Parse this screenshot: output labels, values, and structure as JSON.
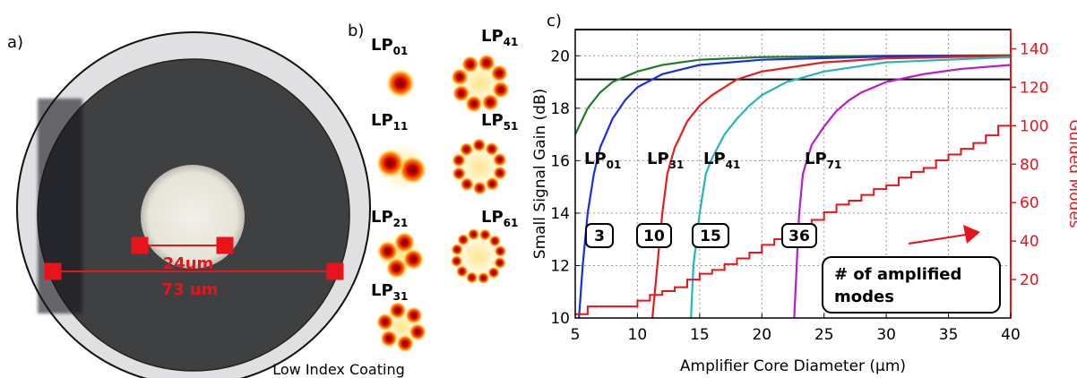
{
  "panel_a": {
    "label": "a)",
    "inner_dimension": "24um",
    "outer_dimension": "73 um",
    "coating_label": "Low Index Coating"
  },
  "panel_b": {
    "label": "b)",
    "modes": [
      {
        "base": "LP",
        "sub": "01"
      },
      {
        "base": "LP",
        "sub": "11"
      },
      {
        "base": "LP",
        "sub": "21"
      },
      {
        "base": "LP",
        "sub": "31"
      },
      {
        "base": "LP",
        "sub": "41"
      },
      {
        "base": "LP",
        "sub": "51"
      },
      {
        "base": "LP",
        "sub": "61"
      }
    ]
  },
  "colors": {
    "accent_red": "#e8141c",
    "lp01": "#1f7a2c",
    "lp31": "#1a2fdc",
    "lp41": "#e81c1c",
    "lp51": "#22b7b7",
    "lp71": "#b51ec9"
  },
  "chart_data": {
    "type": "line",
    "panel_label": "c)",
    "xlabel": "Amplifier Core Diameter (μm)",
    "ylabel": "Small Signal Gain (dB)",
    "y2label": "Guided Modes",
    "xlim": [
      5,
      40
    ],
    "ylim": [
      10,
      21
    ],
    "y2lim": [
      0,
      150
    ],
    "xticks": [
      5,
      10,
      15,
      20,
      25,
      30,
      35,
      40
    ],
    "yticks": [
      10,
      12,
      14,
      16,
      18,
      20
    ],
    "y2ticks": [
      20,
      40,
      60,
      80,
      100,
      120,
      140
    ],
    "grid": true,
    "reference_lines_dB": [
      21,
      19.1
    ],
    "series": [
      {
        "x": [
          5,
          6,
          7,
          8,
          10,
          12,
          15,
          20,
          30,
          40
        ],
        "y": [
          17,
          18,
          18.6,
          19.0,
          19.4,
          19.65,
          19.85,
          19.95,
          20.0,
          20.02
        ]
      },
      {
        "x": [
          5.3,
          5.6,
          6,
          6.5,
          7,
          8,
          9,
          10,
          12,
          15,
          20,
          30,
          40
        ],
        "y": [
          10,
          12,
          14,
          15.5,
          16.5,
          17.6,
          18.3,
          18.8,
          19.3,
          19.65,
          19.85,
          19.97,
          20.0
        ]
      },
      {
        "x": [
          11.2,
          11.6,
          12,
          12.4,
          13,
          14,
          15,
          16,
          18,
          20,
          25,
          30,
          40
        ],
        "y": [
          10,
          12,
          14,
          15.5,
          16.5,
          17.5,
          18.1,
          18.5,
          19.1,
          19.4,
          19.75,
          19.9,
          20.0
        ]
      },
      {
        "x": [
          14.3,
          14.5,
          15,
          15.5,
          16,
          17,
          18,
          19,
          20,
          22,
          25,
          30,
          40
        ],
        "y": [
          10,
          12,
          14,
          15.5,
          16.1,
          17.0,
          17.6,
          18.1,
          18.5,
          19.0,
          19.4,
          19.75,
          19.95
        ]
      },
      {
        "x": [
          22.6,
          22.8,
          23,
          23.3,
          24,
          25,
          26,
          27,
          28,
          30,
          33,
          36,
          40
        ],
        "y": [
          10,
          12,
          14,
          15.5,
          16.6,
          17.3,
          17.9,
          18.3,
          18.6,
          19.0,
          19.3,
          19.5,
          19.65
        ]
      },
      {
        "x": [
          5,
          6,
          8,
          10,
          11,
          12,
          13,
          14,
          15,
          16,
          17,
          18,
          19,
          20,
          21,
          22,
          23,
          24,
          25,
          26,
          27,
          28,
          29,
          30,
          31,
          32,
          33,
          34,
          35,
          36,
          37,
          38,
          39,
          40
        ],
        "y2": [
          2,
          6,
          6,
          9,
          12,
          14,
          16,
          20,
          23,
          25,
          28,
          31,
          34,
          38,
          41,
          45,
          48,
          51,
          55,
          59,
          61,
          64,
          67,
          69,
          73,
          76,
          78,
          82,
          85,
          88,
          91,
          95,
          100,
          100
        ]
      }
    ],
    "annotations": [
      {
        "mode": {
          "base": "LP",
          "sub": "01"
        },
        "count": "3"
      },
      {
        "mode": {
          "base": "LP",
          "sub": "31"
        },
        "count": "10"
      },
      {
        "mode": {
          "base": "LP",
          "sub": "41"
        },
        "count": "15"
      },
      {
        "mode": {
          "base": "LP",
          "sub": "71"
        },
        "count": "36"
      }
    ],
    "legend_box": [
      "# of amplified",
      "modes"
    ]
  }
}
